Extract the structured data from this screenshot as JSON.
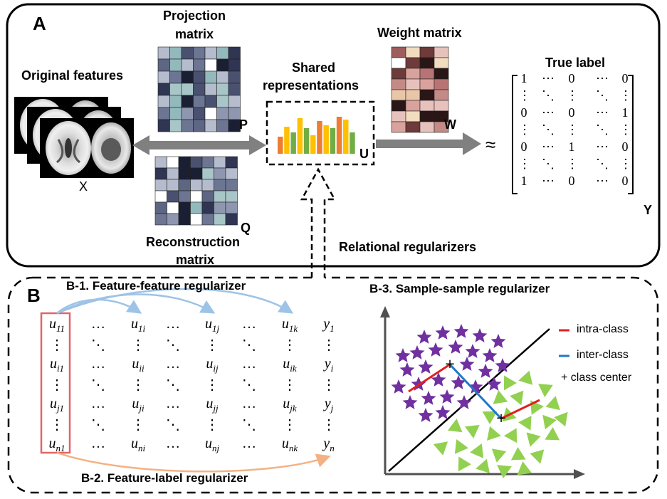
{
  "panel_a": {
    "letter": "A",
    "original_features": "Original features",
    "x_label": "X",
    "projection_title_line1": "Projection",
    "projection_title_line2": "matrix",
    "p_label": "P",
    "reconstruction_line1": "Reconstruction",
    "reconstruction_line2": "matrix",
    "q_label": "Q",
    "shared_line1": "Shared",
    "shared_line2": "representations",
    "u_label": "U",
    "weight_title": "Weight matrix",
    "w_label": "W",
    "approx": "≈",
    "true_label": "True label",
    "y_label": "Y",
    "relational": "Relational regularizers",
    "label_matrix": [
      [
        "1",
        "⋯",
        "0",
        "⋯",
        "0"
      ],
      [
        "⋮",
        "⋱",
        "⋮",
        "⋱",
        "⋮"
      ],
      [
        "0",
        "⋯",
        "0",
        "⋯",
        "1"
      ],
      [
        "⋮",
        "⋱",
        "⋮",
        "⋱",
        "⋮"
      ],
      [
        "0",
        "⋯",
        "1",
        "⋯",
        "0"
      ],
      [
        "⋮",
        "⋱",
        "⋮",
        "⋱",
        "⋮"
      ],
      [
        "1",
        "⋯",
        "0",
        "⋯",
        "0"
      ]
    ],
    "bar_colors": [
      "#ed7d31",
      "#ffc000",
      "#70ad47",
      "#ffc000",
      "#70ad47",
      "#ffc000",
      "#ed7d31",
      "#ffc000",
      "#70ad47",
      "#ed7d31",
      "#ffc000",
      "#70ad47"
    ]
  },
  "panel_b": {
    "letter": "B",
    "b1_title": "B-1. Feature-feature regularizer",
    "b2_title": "B-2. Feature-label regularizer",
    "b3_title": "B-3. Sample-sample regularizer",
    "legend_intra": "intra-class",
    "legend_inter": "inter-class",
    "legend_center": "+ class center",
    "intra_color": "#e02020",
    "inter_color": "#1f78c8",
    "star_color": "#7030a0",
    "triangle_color": "#92d050",
    "matrix_rows": [
      [
        "u11",
        "…",
        "u1i",
        "…",
        "u1j",
        "…",
        "u1k",
        "y1"
      ],
      [
        "⋮",
        "⋱",
        "⋮",
        "⋱",
        "⋮",
        "⋱",
        "⋮",
        "⋮"
      ],
      [
        "ui1",
        "…",
        "uii",
        "…",
        "uij",
        "…",
        "uik",
        "yi"
      ],
      [
        "⋮",
        "⋱",
        "⋮",
        "⋱",
        "⋮",
        "⋱",
        "⋮",
        "⋮"
      ],
      [
        "uj1",
        "…",
        "uji",
        "…",
        "ujj",
        "…",
        "ujk",
        "yj"
      ],
      [
        "⋮",
        "⋱",
        "⋮",
        "⋱",
        "⋮",
        "⋱",
        "⋮",
        "⋮"
      ],
      [
        "un1",
        "…",
        "uni",
        "…",
        "unj",
        "…",
        "unk",
        "yn"
      ]
    ]
  }
}
